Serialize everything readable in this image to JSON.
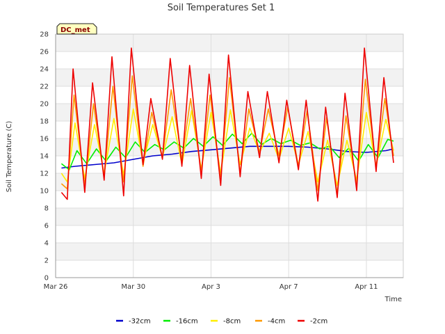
{
  "chart_data": {
    "type": "line",
    "title": "Soil Temperatures Set 1",
    "xlabel": "Time",
    "ylabel": "Soil Temperature (C)",
    "badge": "DC_met",
    "ylim": [
      0,
      28
    ],
    "yticks": [
      0,
      2,
      4,
      6,
      8,
      10,
      12,
      14,
      16,
      18,
      20,
      22,
      24,
      26,
      28
    ],
    "xlim": [
      0,
      17.9
    ],
    "xticks": [
      {
        "value": 0,
        "label": "Mar 26"
      },
      {
        "value": 4,
        "label": "Mar 30"
      },
      {
        "value": 8,
        "label": "Apr 3"
      },
      {
        "value": 12,
        "label": "Apr 7"
      },
      {
        "value": 16,
        "label": "Apr 11"
      }
    ],
    "grid": true,
    "legend_position": "bottom",
    "x_unit": "days since Mar 26",
    "series": [
      {
        "name": "-32cm",
        "color": "#0000cc",
        "x": [
          0.3,
          1,
          2,
          3,
          4,
          5,
          6,
          7,
          8,
          9,
          10,
          11,
          12,
          13,
          14,
          15,
          16,
          17,
          17.4
        ],
        "y": [
          12.6,
          12.8,
          13.0,
          13.2,
          13.6,
          14.0,
          14.2,
          14.5,
          14.7,
          14.9,
          15.1,
          15.1,
          15.1,
          15.0,
          14.8,
          14.5,
          14.4,
          14.6,
          14.8
        ]
      },
      {
        "name": "-16cm",
        "color": "#00ee00",
        "x": [
          0.3,
          0.7,
          1.1,
          1.6,
          2.1,
          2.6,
          3.1,
          3.6,
          4.1,
          4.6,
          5.1,
          5.6,
          6.1,
          6.6,
          7.1,
          7.6,
          8.1,
          8.6,
          9.1,
          9.6,
          10.1,
          10.6,
          11.1,
          11.6,
          12.1,
          12.6,
          13.1,
          13.6,
          14.1,
          14.6,
          15.1,
          15.6,
          16.1,
          16.6,
          17.1,
          17.4
        ],
        "y": [
          13.1,
          12.4,
          14.6,
          13.1,
          14.8,
          13.4,
          15.0,
          13.8,
          15.6,
          14.4,
          15.3,
          14.7,
          15.6,
          14.9,
          16.0,
          15.1,
          16.2,
          15.2,
          16.5,
          15.4,
          16.6,
          15.3,
          16.0,
          15.4,
          15.8,
          15.2,
          15.5,
          14.8,
          15.1,
          13.8,
          14.9,
          13.4,
          15.3,
          13.8,
          15.9,
          15.7
        ]
      },
      {
        "name": "-8cm",
        "color": "#ffee00",
        "x": [
          0.3,
          0.6,
          1.0,
          1.5,
          2.0,
          2.5,
          3.0,
          3.5,
          4.0,
          4.5,
          5.0,
          5.5,
          6.0,
          6.5,
          7.0,
          7.5,
          8.0,
          8.5,
          9.0,
          9.5,
          10.0,
          10.5,
          11.0,
          11.5,
          12.0,
          12.5,
          13.0,
          13.5,
          14.0,
          14.5,
          15.0,
          15.5,
          16.0,
          16.5,
          17.0,
          17.4
        ],
        "y": [
          12.0,
          11.0,
          17.8,
          11.4,
          17.6,
          12.0,
          18.3,
          11.8,
          19.4,
          13.2,
          17.6,
          13.8,
          18.5,
          13.0,
          19.2,
          12.5,
          19.0,
          12.0,
          19.3,
          13.0,
          17.2,
          14.4,
          16.6,
          13.6,
          17.2,
          13.0,
          16.8,
          11.0,
          15.8,
          10.6,
          15.8,
          11.2,
          19.0,
          12.8,
          18.2,
          14.6
        ]
      },
      {
        "name": "-4cm",
        "color": "#ff9900",
        "x": [
          0.3,
          0.6,
          0.95,
          1.5,
          1.95,
          2.5,
          2.95,
          3.5,
          3.95,
          4.5,
          4.95,
          5.5,
          5.95,
          6.5,
          6.95,
          7.5,
          7.95,
          8.5,
          8.95,
          9.5,
          9.95,
          10.5,
          10.95,
          11.5,
          11.95,
          12.5,
          12.95,
          13.5,
          13.95,
          14.5,
          14.95,
          15.5,
          15.95,
          16.5,
          16.95,
          17.4
        ],
        "y": [
          10.8,
          10.2,
          21.0,
          10.6,
          20.0,
          11.6,
          22.0,
          11.0,
          23.2,
          12.8,
          19.0,
          13.8,
          21.6,
          13.6,
          20.6,
          12.2,
          21.0,
          11.6,
          23.0,
          12.0,
          19.4,
          14.4,
          19.4,
          14.0,
          19.6,
          12.8,
          19.2,
          10.0,
          18.4,
          9.6,
          18.6,
          10.6,
          22.8,
          12.6,
          20.6,
          14.0
        ]
      },
      {
        "name": "-2cm",
        "color": "#ee0000",
        "x": [
          0.3,
          0.6,
          0.9,
          1.5,
          1.9,
          2.5,
          2.9,
          3.5,
          3.9,
          4.5,
          4.9,
          5.5,
          5.9,
          6.5,
          6.9,
          7.5,
          7.9,
          8.5,
          8.9,
          9.5,
          9.9,
          10.5,
          10.9,
          11.5,
          11.9,
          12.5,
          12.9,
          13.5,
          13.9,
          14.5,
          14.9,
          15.5,
          15.9,
          16.5,
          16.9,
          17.4
        ],
        "y": [
          9.8,
          9.0,
          24.0,
          9.8,
          22.4,
          11.2,
          25.4,
          9.4,
          26.4,
          13.0,
          20.6,
          13.6,
          25.2,
          12.8,
          24.4,
          11.4,
          23.4,
          10.6,
          25.6,
          11.6,
          21.4,
          13.8,
          21.4,
          13.2,
          20.4,
          12.4,
          20.4,
          8.8,
          19.6,
          9.2,
          21.2,
          10.0,
          26.4,
          12.2,
          23.0,
          13.2
        ]
      }
    ]
  }
}
